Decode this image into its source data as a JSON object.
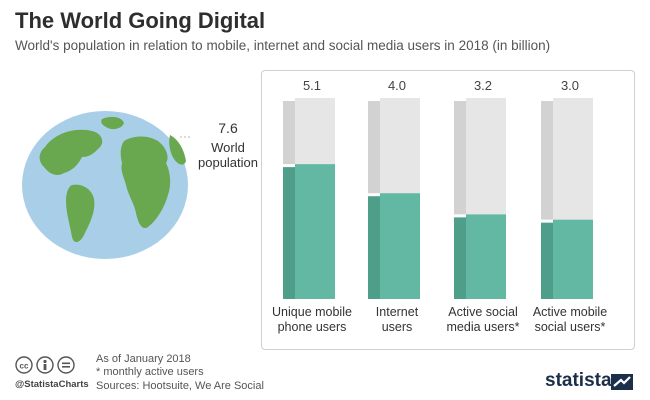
{
  "header": {
    "title": "The World Going Digital",
    "subtitle": "World's population in relation to mobile, internet and social media users in 2018 (in billion)"
  },
  "world": {
    "value": "7.6",
    "label_line1": "World",
    "label_line2": "population"
  },
  "chart_data": {
    "type": "bar",
    "total": 7.6,
    "categories": [
      [
        "Unique mobile",
        "phone users"
      ],
      [
        "Internet",
        "users"
      ],
      [
        "Active social",
        "media users*"
      ],
      [
        "Active mobile",
        "social users*"
      ]
    ],
    "values": [
      5.1,
      4.0,
      3.2,
      3.0
    ],
    "value_labels": [
      "5.1",
      "4.0",
      "3.2",
      "3.0"
    ],
    "ylim": [
      0,
      7.6
    ],
    "grid": false,
    "colors": {
      "fill": "#62b8a3",
      "fill_side": "#4f9e8a",
      "remainder": "#e6e6e6",
      "remainder_side": "#d2d2d2"
    }
  },
  "footer": {
    "note1": "As of January 2018",
    "note2": "* monthly active users",
    "sources": "Sources: Hootsuite, We Are Social",
    "handle": "@StatistaCharts",
    "brand": "statista"
  },
  "colors": {
    "ocean": "#a9cfe8",
    "land": "#6aa84f",
    "brand": "#1b2f4a"
  }
}
